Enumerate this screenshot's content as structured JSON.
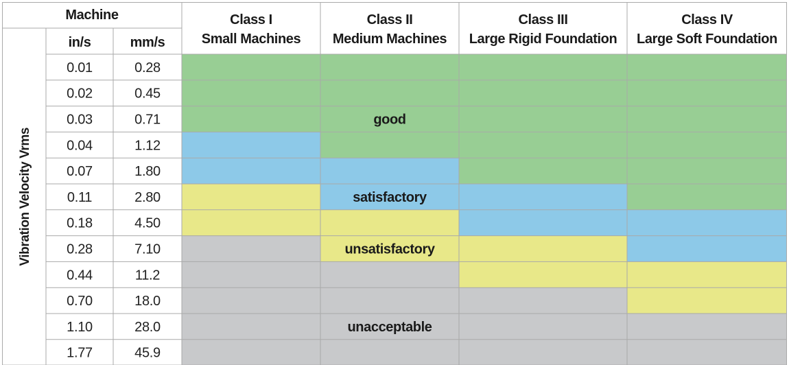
{
  "chart_data": {
    "type": "table",
    "header": {
      "machine_label": "Machine",
      "unit_in": "in/s",
      "unit_mm": "mm/s"
    },
    "side_label": "Vibration Velocity Vrms",
    "classes": [
      {
        "line1": "Class I",
        "line2": "Small Machines"
      },
      {
        "line1": "Class II",
        "line2": "Medium Machines"
      },
      {
        "line1": "Class III",
        "line2": "Large Rigid Foundation"
      },
      {
        "line1": "Class IV",
        "line2": "Large Soft Foundation"
      }
    ],
    "rows": [
      {
        "in_s": "0.01",
        "mm_s": "0.28"
      },
      {
        "in_s": "0.02",
        "mm_s": "0.45"
      },
      {
        "in_s": "0.03",
        "mm_s": "0.71"
      },
      {
        "in_s": "0.04",
        "mm_s": "1.12"
      },
      {
        "in_s": "0.07",
        "mm_s": "1.80"
      },
      {
        "in_s": "0.11",
        "mm_s": "2.80"
      },
      {
        "in_s": "0.18",
        "mm_s": "4.50"
      },
      {
        "in_s": "0.28",
        "mm_s": "7.10"
      },
      {
        "in_s": "0.44",
        "mm_s": "11.2"
      },
      {
        "in_s": "0.70",
        "mm_s": "18.0"
      },
      {
        "in_s": "1.10",
        "mm_s": "28.0"
      },
      {
        "in_s": "1.77",
        "mm_s": "45.9"
      }
    ],
    "zones": {
      "good": {
        "label": "good",
        "color": "#98ce94"
      },
      "satisfactory": {
        "label": "satisfactory",
        "color": "#8dc9e8"
      },
      "unsatisfactory": {
        "label": "unsatisfactory",
        "color": "#e8e889"
      },
      "unacceptable": {
        "label": "unacceptable",
        "color": "#c8c9cb"
      }
    },
    "grid": [
      [
        "good",
        "good",
        "good",
        "good"
      ],
      [
        "good",
        "good",
        "good",
        "good"
      ],
      [
        "good",
        "good",
        "good",
        "good"
      ],
      [
        "satisfactory",
        "good",
        "good",
        "good"
      ],
      [
        "satisfactory",
        "satisfactory",
        "good",
        "good"
      ],
      [
        "unsatisfactory",
        "satisfactory",
        "satisfactory",
        "good"
      ],
      [
        "unsatisfactory",
        "unsatisfactory",
        "satisfactory",
        "satisfactory"
      ],
      [
        "unacceptable",
        "unsatisfactory",
        "unsatisfactory",
        "satisfactory"
      ],
      [
        "unacceptable",
        "unacceptable",
        "unsatisfactory",
        "unsatisfactory"
      ],
      [
        "unacceptable",
        "unacceptable",
        "unacceptable",
        "unsatisfactory"
      ],
      [
        "unacceptable",
        "unacceptable",
        "unacceptable",
        "unacceptable"
      ],
      [
        "unacceptable",
        "unacceptable",
        "unacceptable",
        "unacceptable"
      ]
    ],
    "zone_label_positions": [
      {
        "zone": "good",
        "row": 2,
        "col": 1
      },
      {
        "zone": "satisfactory",
        "row": 5,
        "col": 1
      },
      {
        "zone": "unsatisfactory",
        "row": 7,
        "col": 1
      },
      {
        "zone": "unacceptable",
        "row": 10,
        "col": 1
      }
    ]
  }
}
